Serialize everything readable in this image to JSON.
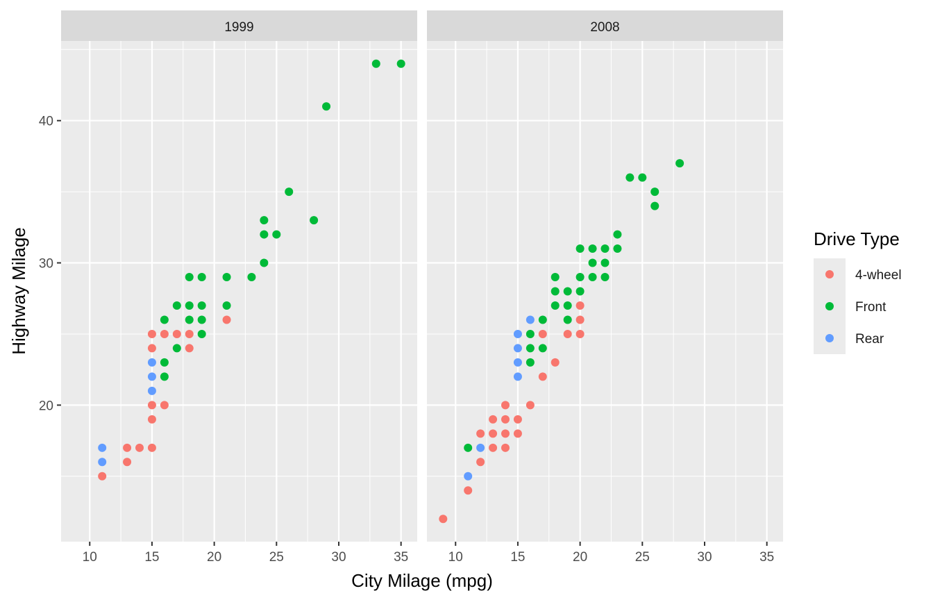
{
  "chart_data": {
    "type": "scatter",
    "xlabel": "City Milage (mpg)",
    "ylabel": "Highway Milage",
    "xlim": [
      7.7,
      36.3
    ],
    "ylim": [
      10.4,
      45.6
    ],
    "x_ticks": [
      10,
      15,
      20,
      25,
      30,
      35
    ],
    "y_ticks": [
      20,
      30,
      40
    ],
    "legend": {
      "title": "Drive Type",
      "position": "right",
      "entries": [
        {
          "key": "4",
          "label": "4-wheel",
          "color": "#F8766D"
        },
        {
          "key": "f",
          "label": "Front",
          "color": "#00BA38"
        },
        {
          "key": "r",
          "label": "Rear",
          "color": "#619CFF"
        }
      ]
    },
    "facets": [
      {
        "label": "1999",
        "points": [
          {
            "x": 11,
            "y": 15,
            "drv": "4"
          },
          {
            "x": 11,
            "y": 16,
            "drv": "r"
          },
          {
            "x": 11,
            "y": 17,
            "drv": "r"
          },
          {
            "x": 13,
            "y": 16,
            "drv": "4"
          },
          {
            "x": 13,
            "y": 17,
            "drv": "4"
          },
          {
            "x": 14,
            "y": 17,
            "drv": "4"
          },
          {
            "x": 15,
            "y": 17,
            "drv": "4"
          },
          {
            "x": 15,
            "y": 19,
            "drv": "4"
          },
          {
            "x": 15,
            "y": 20,
            "drv": "4"
          },
          {
            "x": 15,
            "y": 21,
            "drv": "r"
          },
          {
            "x": 15,
            "y": 22,
            "drv": "r"
          },
          {
            "x": 15,
            "y": 23,
            "drv": "r"
          },
          {
            "x": 15,
            "y": 24,
            "drv": "4"
          },
          {
            "x": 15,
            "y": 25,
            "drv": "4"
          },
          {
            "x": 16,
            "y": 20,
            "drv": "4"
          },
          {
            "x": 16,
            "y": 22,
            "drv": "f"
          },
          {
            "x": 16,
            "y": 23,
            "drv": "f"
          },
          {
            "x": 16,
            "y": 25,
            "drv": "4"
          },
          {
            "x": 16,
            "y": 26,
            "drv": "f"
          },
          {
            "x": 17,
            "y": 24,
            "drv": "f"
          },
          {
            "x": 17,
            "y": 25,
            "drv": "4"
          },
          {
            "x": 17,
            "y": 27,
            "drv": "f"
          },
          {
            "x": 18,
            "y": 24,
            "drv": "4"
          },
          {
            "x": 18,
            "y": 25,
            "drv": "4"
          },
          {
            "x": 18,
            "y": 26,
            "drv": "f"
          },
          {
            "x": 18,
            "y": 27,
            "drv": "f"
          },
          {
            "x": 18,
            "y": 29,
            "drv": "f"
          },
          {
            "x": 19,
            "y": 25,
            "drv": "f"
          },
          {
            "x": 19,
            "y": 26,
            "drv": "f"
          },
          {
            "x": 19,
            "y": 27,
            "drv": "f"
          },
          {
            "x": 19,
            "y": 29,
            "drv": "f"
          },
          {
            "x": 21,
            "y": 26,
            "drv": "4"
          },
          {
            "x": 21,
            "y": 27,
            "drv": "f"
          },
          {
            "x": 21,
            "y": 29,
            "drv": "f"
          },
          {
            "x": 23,
            "y": 29,
            "drv": "f"
          },
          {
            "x": 24,
            "y": 30,
            "drv": "f"
          },
          {
            "x": 24,
            "y": 32,
            "drv": "f"
          },
          {
            "x": 24,
            "y": 33,
            "drv": "f"
          },
          {
            "x": 25,
            "y": 32,
            "drv": "f"
          },
          {
            "x": 26,
            "y": 35,
            "drv": "f"
          },
          {
            "x": 28,
            "y": 33,
            "drv": "f"
          },
          {
            "x": 29,
            "y": 41,
            "drv": "f"
          },
          {
            "x": 33,
            "y": 44,
            "drv": "f"
          },
          {
            "x": 35,
            "y": 44,
            "drv": "f"
          }
        ]
      },
      {
        "label": "2008",
        "points": [
          {
            "x": 9,
            "y": 12,
            "drv": "4"
          },
          {
            "x": 11,
            "y": 14,
            "drv": "4"
          },
          {
            "x": 11,
            "y": 15,
            "drv": "r"
          },
          {
            "x": 11,
            "y": 17,
            "drv": "f"
          },
          {
            "x": 12,
            "y": 16,
            "drv": "4"
          },
          {
            "x": 12,
            "y": 17,
            "drv": "r"
          },
          {
            "x": 12,
            "y": 18,
            "drv": "4"
          },
          {
            "x": 13,
            "y": 17,
            "drv": "4"
          },
          {
            "x": 13,
            "y": 18,
            "drv": "4"
          },
          {
            "x": 13,
            "y": 19,
            "drv": "4"
          },
          {
            "x": 14,
            "y": 17,
            "drv": "4"
          },
          {
            "x": 14,
            "y": 18,
            "drv": "4"
          },
          {
            "x": 14,
            "y": 19,
            "drv": "4"
          },
          {
            "x": 14,
            "y": 20,
            "drv": "4"
          },
          {
            "x": 15,
            "y": 18,
            "drv": "4"
          },
          {
            "x": 15,
            "y": 19,
            "drv": "4"
          },
          {
            "x": 15,
            "y": 22,
            "drv": "r"
          },
          {
            "x": 15,
            "y": 23,
            "drv": "r"
          },
          {
            "x": 15,
            "y": 24,
            "drv": "r"
          },
          {
            "x": 15,
            "y": 25,
            "drv": "r"
          },
          {
            "x": 16,
            "y": 20,
            "drv": "4"
          },
          {
            "x": 16,
            "y": 23,
            "drv": "f"
          },
          {
            "x": 16,
            "y": 24,
            "drv": "f"
          },
          {
            "x": 16,
            "y": 25,
            "drv": "f"
          },
          {
            "x": 16,
            "y": 26,
            "drv": "r"
          },
          {
            "x": 17,
            "y": 22,
            "drv": "4"
          },
          {
            "x": 17,
            "y": 24,
            "drv": "f"
          },
          {
            "x": 17,
            "y": 25,
            "drv": "4"
          },
          {
            "x": 17,
            "y": 26,
            "drv": "f"
          },
          {
            "x": 18,
            "y": 23,
            "drv": "4"
          },
          {
            "x": 18,
            "y": 27,
            "drv": "f"
          },
          {
            "x": 18,
            "y": 28,
            "drv": "f"
          },
          {
            "x": 18,
            "y": 29,
            "drv": "f"
          },
          {
            "x": 19,
            "y": 25,
            "drv": "4"
          },
          {
            "x": 19,
            "y": 26,
            "drv": "f"
          },
          {
            "x": 19,
            "y": 27,
            "drv": "f"
          },
          {
            "x": 19,
            "y": 28,
            "drv": "f"
          },
          {
            "x": 20,
            "y": 25,
            "drv": "4"
          },
          {
            "x": 20,
            "y": 26,
            "drv": "4"
          },
          {
            "x": 20,
            "y": 27,
            "drv": "4"
          },
          {
            "x": 20,
            "y": 28,
            "drv": "f"
          },
          {
            "x": 20,
            "y": 29,
            "drv": "f"
          },
          {
            "x": 20,
            "y": 31,
            "drv": "f"
          },
          {
            "x": 21,
            "y": 29,
            "drv": "f"
          },
          {
            "x": 21,
            "y": 30,
            "drv": "f"
          },
          {
            "x": 21,
            "y": 31,
            "drv": "f"
          },
          {
            "x": 22,
            "y": 29,
            "drv": "f"
          },
          {
            "x": 22,
            "y": 30,
            "drv": "f"
          },
          {
            "x": 22,
            "y": 31,
            "drv": "f"
          },
          {
            "x": 23,
            "y": 31,
            "drv": "f"
          },
          {
            "x": 23,
            "y": 32,
            "drv": "f"
          },
          {
            "x": 24,
            "y": 36,
            "drv": "f"
          },
          {
            "x": 25,
            "y": 36,
            "drv": "f"
          },
          {
            "x": 26,
            "y": 34,
            "drv": "f"
          },
          {
            "x": 26,
            "y": 35,
            "drv": "f"
          },
          {
            "x": 28,
            "y": 37,
            "drv": "f"
          }
        ]
      }
    ]
  }
}
